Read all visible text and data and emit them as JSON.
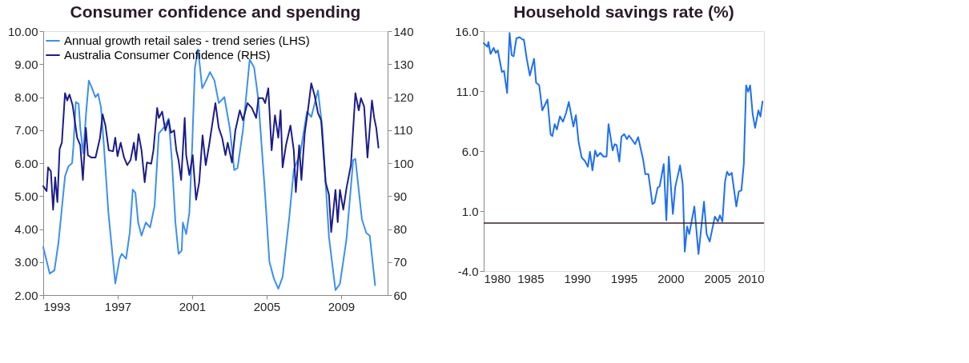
{
  "chart_data": [
    {
      "type": "line",
      "title": "Consumer confidence and spending",
      "xlim": [
        1993,
        2011.5
      ],
      "xticks": [
        1993,
        1997,
        2001,
        2005,
        2009
      ],
      "ylim": [
        2,
        10
      ],
      "yticks": [
        {
          "value": 2,
          "label": "2.00"
        },
        {
          "value": 3,
          "label": "3.00"
        },
        {
          "value": 4,
          "label": "4.00"
        },
        {
          "value": 5,
          "label": "5.00"
        },
        {
          "value": 6,
          "label": "6.00"
        },
        {
          "value": 7,
          "label": "7.00"
        },
        {
          "value": 8,
          "label": "8.00"
        },
        {
          "value": 9,
          "label": "9.00"
        },
        {
          "value": 10,
          "label": "10.00"
        }
      ],
      "y2lim": [
        60,
        140
      ],
      "y2ticks": [
        60,
        70,
        80,
        90,
        100,
        110,
        120,
        130,
        140
      ],
      "legend": "top left",
      "grid": false,
      "series": [
        {
          "name": "Annual growth retail sales - trend series (LHS)",
          "color": "#3d8ff0",
          "x": [
            1993.0,
            1993.35,
            1993.6,
            1993.82,
            1994.17,
            1994.35,
            1994.55,
            1994.62,
            1994.75,
            1994.9,
            1995.0,
            1995.15,
            1995.3,
            1995.45,
            1995.6,
            1995.8,
            1995.95,
            1996.1,
            1996.25,
            1996.5,
            1996.87,
            1997.1,
            1997.22,
            1997.45,
            1997.65,
            1997.81,
            1997.95,
            1998.1,
            1998.28,
            1998.51,
            1998.74,
            1998.98,
            1999.21,
            1999.51,
            1999.74,
            1999.92,
            2000.1,
            2000.27,
            2000.44,
            2000.5,
            2000.68,
            2000.85,
            2001.0,
            2001.15,
            2001.32,
            2001.54,
            2001.75,
            2001.96,
            2002.2,
            2002.43,
            2002.73,
            2003.02,
            2003.26,
            2003.44,
            2003.73,
            2004.09,
            2004.33,
            2004.56,
            2004.92,
            2005.15,
            2005.39,
            2005.63,
            2005.86,
            2006.22,
            2006.46,
            2006.81,
            2007.17,
            2007.4,
            2007.76,
            2007.99,
            2008.35,
            2008.7,
            2008.94,
            2009.29,
            2009.65,
            2009.77,
            2010.12,
            2010.36,
            2010.54,
            2010.83
          ],
          "values": [
            3.45,
            2.65,
            2.75,
            3.6,
            5.6,
            5.9,
            6.0,
            6.5,
            7.85,
            7.8,
            7.0,
            6.3,
            7.5,
            8.5,
            8.3,
            8.0,
            8.1,
            7.7,
            6.6,
            4.5,
            2.35,
            3.1,
            3.25,
            3.1,
            3.9,
            5.2,
            5.1,
            4.2,
            3.8,
            4.2,
            4.05,
            4.7,
            6.9,
            7.1,
            7.35,
            6.0,
            4.2,
            3.25,
            3.35,
            4.2,
            3.85,
            4.5,
            6.5,
            8.9,
            9.45,
            8.27,
            8.5,
            8.76,
            8.5,
            7.82,
            8.0,
            7.07,
            5.79,
            5.85,
            7.0,
            9.14,
            8.9,
            7.9,
            5.04,
            3.01,
            2.5,
            2.19,
            2.55,
            4.37,
            5.8,
            6.3,
            7.56,
            7.4,
            8.2,
            7.07,
            3.76,
            2.15,
            2.34,
            3.69,
            6.09,
            6.13,
            4.29,
            3.88,
            3.8,
            2.3
          ]
        },
        {
          "name": "Australia Consumer Confidence (RHS)",
          "color": "#1c1c8a",
          "axis": "y2",
          "x": [
            1993.0,
            1993.18,
            1993.26,
            1993.41,
            1993.53,
            1993.64,
            1993.76,
            1993.88,
            1994.0,
            1994.17,
            1994.29,
            1994.41,
            1994.58,
            1994.82,
            1994.99,
            1995.13,
            1995.29,
            1995.4,
            1995.58,
            1995.81,
            1996.05,
            1996.19,
            1996.34,
            1996.52,
            1996.75,
            1996.87,
            1996.99,
            1997.16,
            1997.34,
            1997.51,
            1997.69,
            1997.87,
            1997.98,
            1998.12,
            1998.28,
            1998.45,
            1998.57,
            1998.8,
            1998.92,
            1999.12,
            1999.21,
            1999.39,
            1999.56,
            1999.74,
            1999.86,
            2000.03,
            2000.15,
            2000.27,
            2000.41,
            2000.6,
            2000.68,
            2000.85,
            2001.03,
            2001.21,
            2001.38,
            2001.56,
            2001.73,
            2001.91,
            2002.25,
            2002.43,
            2002.61,
            2002.79,
            2002.91,
            2003.14,
            2003.32,
            2003.56,
            2003.73,
            2003.97,
            2004.21,
            2004.44,
            2004.56,
            2004.8,
            2004.92,
            2005.09,
            2005.27,
            2005.45,
            2005.63,
            2005.75,
            2005.86,
            2006.04,
            2006.28,
            2006.46,
            2006.57,
            2006.75,
            2006.87,
            2007.05,
            2007.22,
            2007.4,
            2007.58,
            2007.76,
            2007.93,
            2008.17,
            2008.35,
            2008.47,
            2008.7,
            2008.82,
            2008.94,
            2009.12,
            2009.3,
            2009.53,
            2009.77,
            2009.95,
            2010.07,
            2010.24,
            2010.42,
            2010.66,
            2010.78,
            2010.89,
            2011.01
          ],
          "values": [
            93,
            91.5,
            98.7,
            97.5,
            85.9,
            95.7,
            88.2,
            104.3,
            106.2,
            121.2,
            119,
            120.8,
            117.5,
            107.7,
            105.4,
            94.9,
            110.7,
            102.4,
            101.7,
            101.7,
            107.7,
            114.8,
            111.4,
            103.9,
            103.6,
            107.7,
            102.1,
            106.2,
            101.7,
            99.4,
            100.9,
            106.2,
            100.9,
            108.8,
            103.9,
            94.2,
            100.2,
            99.8,
            103.9,
            116.7,
            113.7,
            115.6,
            109.9,
            113,
            109.2,
            109.9,
            103.9,
            100.9,
            94.9,
            113.7,
            102.4,
            96.4,
            102.4,
            88.9,
            94.2,
            108.4,
            99.4,
            105.4,
            118.2,
            110.7,
            107.7,
            102.4,
            106.2,
            100.2,
            109.9,
            116,
            113,
            118.2,
            116.7,
            113.7,
            119.7,
            119.7,
            118.2,
            122.7,
            103.9,
            114.5,
            107.7,
            116,
            98.7,
            105.4,
            111.4,
            103.9,
            91.2,
            105.4,
            94.9,
            109.2,
            116,
            124.2,
            120.5,
            115.2,
            113,
            94.2,
            90.4,
            79.1,
            91.9,
            82.1,
            91.9,
            85.9,
            92.7,
            99.4,
            121.2,
            116,
            119.7,
            117.1,
            101.7,
            119,
            113.7,
            110.7,
            104.7
          ]
        }
      ]
    },
    {
      "type": "line",
      "title": "Household savings rate (%)",
      "xlim": [
        1980,
        2010
      ],
      "xticks": [
        1980,
        1985,
        1990,
        1995,
        2000,
        2005,
        2010
      ],
      "ylim": [
        -4,
        16
      ],
      "yticks": [
        {
          "value": -4,
          "label": "-4.0"
        },
        {
          "value": 1,
          "label": "1.0"
        },
        {
          "value": 6,
          "label": "6.0"
        },
        {
          "value": 11,
          "label": "11.0"
        },
        {
          "value": 16,
          "label": "16.0"
        }
      ],
      "grid": false,
      "ref_lines": [
        {
          "axis": "y",
          "value": 0,
          "color": "#3a1f2a"
        }
      ],
      "series": [
        {
          "color": "#1f6ff2",
          "x": [
            1980.0,
            1980.4,
            1980.5,
            1980.73,
            1981.06,
            1981.29,
            1981.51,
            1981.95,
            1982.17,
            1982.51,
            1982.77,
            1983.0,
            1983.2,
            1983.5,
            1983.84,
            1984.17,
            1984.3,
            1984.61,
            1984.94,
            1985.39,
            1985.61,
            1985.94,
            1986.27,
            1986.83,
            1987.16,
            1987.35,
            1987.6,
            1987.83,
            1988.16,
            1988.49,
            1988.82,
            1989.11,
            1989.6,
            1989.87,
            1990.15,
            1990.49,
            1990.82,
            1991.15,
            1991.37,
            1991.64,
            1991.93,
            1992.15,
            1992.48,
            1992.82,
            1993.15,
            1993.36,
            1993.8,
            1994.02,
            1994.23,
            1994.52,
            1994.74,
            1995.04,
            1995.33,
            1995.55,
            1995.88,
            1996.2,
            1996.53,
            1997.08,
            1997.3,
            1997.63,
            1998.06,
            1998.28,
            1998.61,
            1998.83,
            1999.27,
            1999.55,
            1999.81,
            2000.25,
            2000.51,
            2001.02,
            2001.3,
            2001.52,
            2001.78,
            2002.0,
            2002.55,
            2002.99,
            2003.58,
            2003.86,
            2004.19,
            2004.74,
            2005.07,
            2005.28,
            2005.55,
            2005.83,
            2006.05,
            2006.27,
            2006.55,
            2007.04,
            2007.3,
            2007.58,
            2007.84,
            2008.09,
            2008.3,
            2008.52,
            2008.79,
            2009.05,
            2009.4,
            2009.62,
            2009.84
          ],
          "values": [
            15.0,
            14.7,
            15.1,
            14.1,
            14.6,
            14.2,
            14.4,
            12.6,
            12.7,
            10.85,
            15.85,
            14.0,
            13.9,
            15.4,
            15.5,
            15.3,
            15.3,
            13.7,
            12.3,
            13.7,
            11.7,
            11.5,
            9.4,
            10.3,
            7.4,
            7.25,
            8.25,
            7.8,
            8.9,
            8.45,
            9.2,
            10.1,
            8.05,
            9.0,
            6.8,
            5.45,
            5.2,
            4.7,
            5.95,
            4.4,
            6.05,
            5.55,
            5.85,
            5.55,
            5.55,
            8.25,
            6.06,
            6.58,
            6.5,
            5.13,
            7.2,
            7.42,
            7.0,
            7.3,
            6.95,
            6.58,
            7.17,
            5.23,
            4.08,
            4.08,
            1.58,
            1.7,
            2.94,
            3.05,
            4.92,
            0.23,
            5.54,
            0.75,
            3.04,
            4.81,
            3.25,
            -2.38,
            -0.29,
            -0.92,
            1.38,
            -2.58,
            1.79,
            -0.92,
            -1.54,
            0.54,
            0.13,
            0.65,
            0.13,
            3.46,
            4.29,
            3.98,
            4.19,
            1.38,
            2.63,
            2.73,
            4.92,
            11.48,
            10.96,
            11.48,
            9.08,
            7.94,
            9.4,
            8.88,
            10.13
          ]
        }
      ]
    }
  ]
}
